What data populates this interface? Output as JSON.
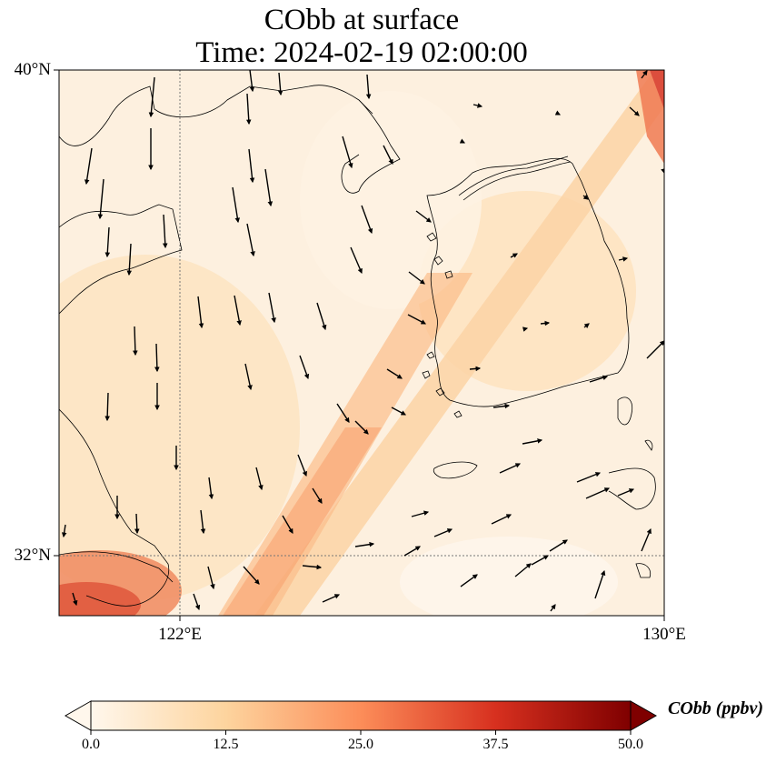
{
  "title": {
    "line1": "CObb at surface",
    "line2": "Time: 2024-02-19 02:00:00"
  },
  "map": {
    "lat_labels": [
      "40°N",
      "32°N"
    ],
    "lon_labels": [
      "122°E",
      "130°E"
    ],
    "gridlines": "dotted",
    "field": "CObb surface concentration",
    "wind_vectors": "shown"
  },
  "colorbar": {
    "label": "CObb (ppbv)",
    "ticks": [
      "0.0",
      "12.5",
      "25.0",
      "37.5",
      "50.0"
    ],
    "range": [
      0,
      50
    ],
    "extend": "both",
    "colormap": "OrRd",
    "colors": [
      "#fff7ec",
      "#fdd49e",
      "#fc8d59",
      "#d7301f",
      "#7f0000"
    ]
  }
}
